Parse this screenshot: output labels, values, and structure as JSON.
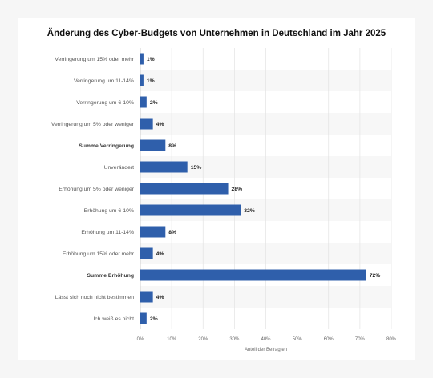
{
  "chart_data": {
    "type": "bar",
    "orientation": "horizontal",
    "title": "Änderung des Cyber-Budgets von Unternehmen in Deutschland im Jahr 2025",
    "xlabel": "Anteil der Befragten",
    "ylabel": "",
    "xlim": [
      0,
      80
    ],
    "tick_labels": [
      "0%",
      "10%",
      "20%",
      "30%",
      "40%",
      "50%",
      "60%",
      "70%",
      "80%"
    ],
    "categories": [
      "Verringerung um 15% oder mehr",
      "Verringerung um 11-14%",
      "Verringerung um 6-10%",
      "Verringerung um 5% oder weniger",
      "Summe Verringerung",
      "Unverändert",
      "Erhöhung um 5% oder weniger",
      "Erhöhung um 6-10%",
      "Erhöhung um 11-14%",
      "Erhöhung um 15% oder mehr",
      "Summe Erhöhung",
      "Lässt sich noch nicht bestimmen",
      "Ich weiß es nicht"
    ],
    "bold_categories": [
      "Summe Verringerung",
      "Summe Erhöhung"
    ],
    "values": [
      1,
      1,
      2,
      4,
      8,
      15,
      28,
      32,
      8,
      4,
      72,
      4,
      2
    ],
    "value_labels": [
      "1%",
      "1%",
      "2%",
      "4%",
      "8%",
      "15%",
      "28%",
      "32%",
      "8%",
      "4%",
      "72%",
      "4%",
      "2%"
    ],
    "bar_color": "#2f5fab",
    "grid": true,
    "legend": "none"
  }
}
